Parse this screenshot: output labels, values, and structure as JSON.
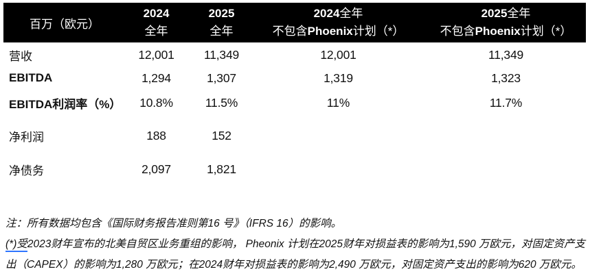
{
  "colors": {
    "header_bg": "#000000",
    "header_text": "#ffffff",
    "body_text": "#111111",
    "marker_underline": "#2e75ff"
  },
  "table": {
    "unit_label": "百万（欧元）",
    "header": {
      "c2": {
        "year": "2024",
        "period": "全年"
      },
      "c3": {
        "year": "2025",
        "period": "全年"
      },
      "c4": {
        "year": "2024",
        "period": "全年",
        "excl_pre": "不包含",
        "excl_brand": "Phoenix",
        "excl_post": "计划（*）"
      },
      "c5": {
        "year": "2025",
        "period": "全年",
        "excl_pre": "不包含",
        "excl_brand": "Phoenix",
        "excl_post": "计划（*）"
      }
    },
    "rows": [
      {
        "label": "营收",
        "values": [
          "12,001",
          "11,349",
          "12,001",
          "11,349"
        ]
      },
      {
        "label": "EBITDA",
        "values": [
          "1,294",
          "1,307",
          "1,319",
          "1,323"
        ]
      },
      {
        "label": "EBITDA利润率（%）",
        "values": [
          "10.8%",
          "11.5%",
          "11%",
          "11.7%"
        ]
      },
      {
        "label": "净利润",
        "values": [
          "188",
          "152",
          "",
          ""
        ]
      },
      {
        "label": "净债务",
        "values": [
          "2,097",
          "1,821",
          "",
          ""
        ]
      }
    ]
  },
  "notes": {
    "ifrs": "注：所有数据均包含《国际财务报告准则第16 号》（IFRS 16）的影响。",
    "phoenix_marker": "(*)受",
    "phoenix_body": "2023财年宣布的北美自贸区业务重组的影响， Pheonix 计划在2025财年对损益表的影响为1,590 万欧元，对固定资产支出（CAPEX）的影响为1,280 万欧元；在2024财年对损益表的影响为2,490 万欧元，对固定资产支出的影响为620 万欧元。"
  }
}
